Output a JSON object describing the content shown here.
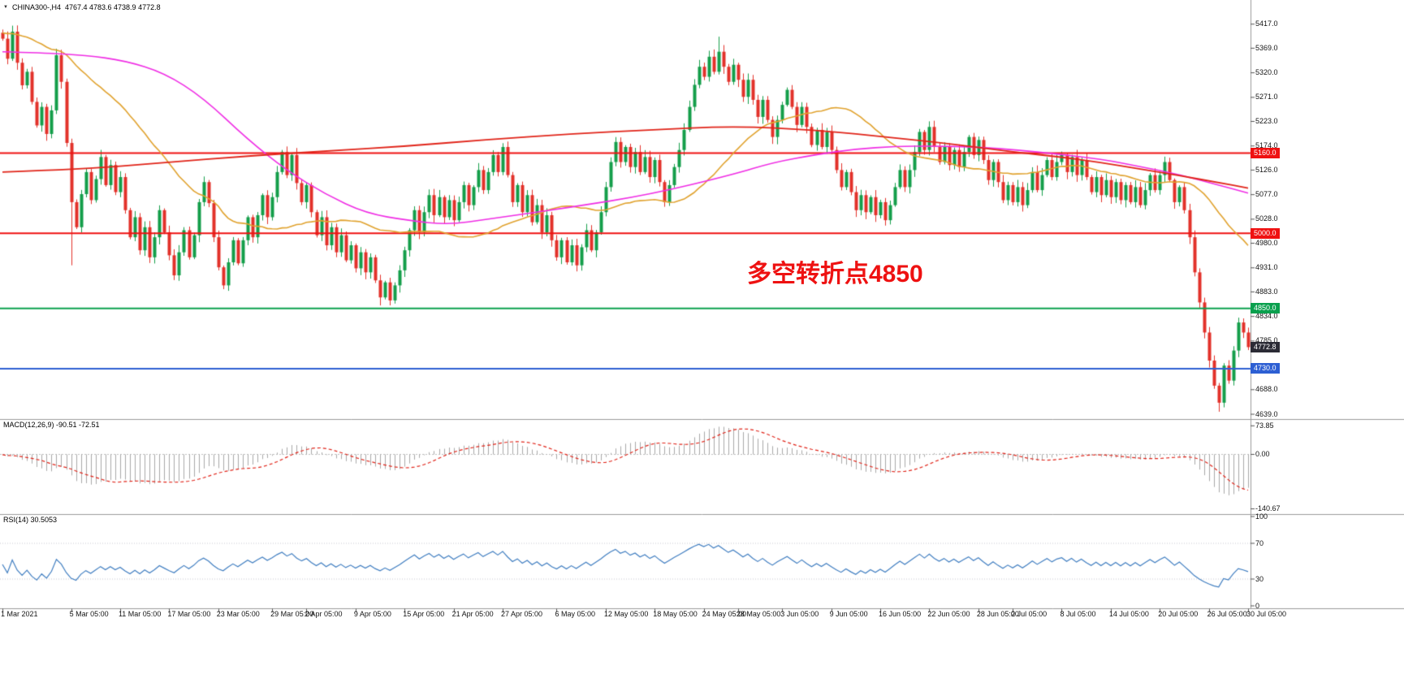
{
  "header": {
    "collapse_icon": "▼",
    "symbol_period": "CHINA300-,H4",
    "ohlc_text": "4767.4 4783.6 4738.9 4772.8"
  },
  "annotation": {
    "text": "多空转折点4850",
    "color": "#ee1111"
  },
  "chart_data": {
    "type": "candlestick",
    "title": "CHINA300-,H4",
    "symbol": "CHINA300-",
    "timeframe": "H4",
    "panels": [
      "price",
      "MACD",
      "RSI"
    ],
    "grid": false,
    "legend_position": "none",
    "price_axis": {
      "min": 4631,
      "max": 5436,
      "ticks": [
        5417,
        5369,
        5320,
        5271,
        5223,
        5174,
        5126,
        5077,
        5028,
        4980,
        4931,
        4883,
        4834,
        4785,
        4688,
        4639
      ]
    },
    "time_labels": [
      {
        "bar": 0,
        "label": "1 Mar 2021"
      },
      {
        "bar": 14,
        "label": "5 Mar 05:00"
      },
      {
        "bar": 24,
        "label": "11 Mar 05:00"
      },
      {
        "bar": 34,
        "label": "17 Mar 05:00"
      },
      {
        "bar": 44,
        "label": "23 Mar 05:00"
      },
      {
        "bar": 55,
        "label": "29 Mar 05:00"
      },
      {
        "bar": 62,
        "label": "2 Apr 05:00"
      },
      {
        "bar": 72,
        "label": "9 Apr 05:00"
      },
      {
        "bar": 82,
        "label": "15 Apr 05:00"
      },
      {
        "bar": 92,
        "label": "21 Apr 05:00"
      },
      {
        "bar": 102,
        "label": "27 Apr 05:00"
      },
      {
        "bar": 113,
        "label": "6 May 05:00"
      },
      {
        "bar": 123,
        "label": "12 May 05:00"
      },
      {
        "bar": 133,
        "label": "18 May 05:00"
      },
      {
        "bar": 143,
        "label": "24 May 05:00"
      },
      {
        "bar": 150,
        "label": "28 May 05:00"
      },
      {
        "bar": 159,
        "label": "3 Jun 05:00"
      },
      {
        "bar": 169,
        "label": "9 Jun 05:00"
      },
      {
        "bar": 179,
        "label": "16 Jun 05:00"
      },
      {
        "bar": 189,
        "label": "22 Jun 05:00"
      },
      {
        "bar": 199,
        "label": "28 Jun 05:00"
      },
      {
        "bar": 206,
        "label": "2 Jul 05:00"
      },
      {
        "bar": 216,
        "label": "8 Jul 05:00"
      },
      {
        "bar": 226,
        "label": "14 Jul 05:00"
      },
      {
        "bar": 236,
        "label": "20 Jul 05:00"
      },
      {
        "bar": 246,
        "label": "26 Jul 05:00"
      },
      {
        "bar": 254,
        "label": "30 Jul 05:00"
      }
    ],
    "pre_close": 5400,
    "closes": [
      5388,
      5348,
      5402,
      5340,
      5295,
      5322,
      5262,
      5215,
      5252,
      5198,
      5245,
      5355,
      5302,
      5180,
      5062,
      5012,
      5078,
      5122,
      5066,
      5108,
      5152,
      5096,
      5136,
      5082,
      5112,
      5046,
      4992,
      5032,
      4966,
      5012,
      4952,
      4992,
      5046,
      5002,
      4956,
      4916,
      4962,
      5006,
      4952,
      4996,
      5062,
      5102,
      5060,
      4992,
      4932,
      4896,
      4942,
      4986,
      4940,
      4986,
      5032,
      4992,
      5036,
      5076,
      5032,
      5072,
      5122,
      5162,
      5116,
      5156,
      5100,
      5062,
      5096,
      5042,
      4996,
      5032,
      4976,
      5012,
      4962,
      4996,
      4946,
      4976,
      4930,
      4962,
      4922,
      4952,
      4906,
      4872,
      4902,
      4866,
      4896,
      4926,
      4966,
      5006,
      5046,
      5002,
      5042,
      5076,
      5036,
      5072,
      5032,
      5066,
      5026,
      5062,
      5096,
      5056,
      5092,
      5126,
      5086,
      5122,
      5156,
      5122,
      5172,
      5116,
      5062,
      5096,
      5042,
      5076,
      5022,
      5056,
      5002,
      5036,
      4986,
      4952,
      4986,
      4942,
      4976,
      4936,
      4972,
      5006,
      4966,
      5002,
      5042,
      5092,
      5142,
      5182,
      5142,
      5172,
      5132,
      5162,
      5122,
      5152,
      5112,
      5146,
      5102,
      5062,
      5096,
      5132,
      5166,
      5206,
      5252,
      5296,
      5332,
      5312,
      5352,
      5322,
      5362,
      5332,
      5302,
      5336,
      5306,
      5272,
      5306,
      5266,
      5232,
      5266,
      5226,
      5192,
      5226,
      5256,
      5286,
      5252,
      5216,
      5252,
      5212,
      5176,
      5206,
      5172,
      5202,
      5166,
      5126,
      5092,
      5122,
      5082,
      5046,
      5076,
      5042,
      5072,
      5036,
      5062,
      5026,
      5056,
      5092,
      5126,
      5092,
      5126,
      5162,
      5202,
      5166,
      5212,
      5172,
      5142,
      5172,
      5136,
      5166,
      5132,
      5162,
      5192,
      5156,
      5186,
      5146,
      5106,
      5142,
      5102,
      5066,
      5096,
      5062,
      5092,
      5056,
      5086,
      5122,
      5086,
      5116,
      5146,
      5112,
      5142,
      5156,
      5122,
      5152,
      5116,
      5146,
      5112,
      5082,
      5112,
      5076,
      5106,
      5072,
      5102,
      5066,
      5096,
      5062,
      5092,
      5056,
      5086,
      5116,
      5086,
      5116,
      5142,
      5106,
      5062,
      5092,
      5046,
      4992,
      4922,
      4862,
      4802,
      4746,
      4696,
      4662,
      4736,
      4706,
      4766,
      4822,
      4802,
      4772.8
    ],
    "wick_high_overrides": {
      "2": 5414,
      "11": 5368,
      "146": 5392
    },
    "wick_low_overrides": {
      "14": 4936,
      "77": 4856,
      "248": 4644
    },
    "candle_colors": {
      "up": "#149e4a",
      "down": "#e2312a"
    },
    "current_price": {
      "value": 4772.8,
      "label": "4772.8",
      "tag_color": "#2b2b35"
    },
    "levels": [
      {
        "price": 5160.0,
        "label": "5160.0",
        "color": "#ef1111",
        "width": 2
      },
      {
        "price": 5000.0,
        "label": "5000.0",
        "color": "#ef1111",
        "width": 2
      },
      {
        "price": 4850.0,
        "label": "4850.0",
        "color": "#0aa04e",
        "width": 2
      },
      {
        "price": 4730.0,
        "label": "4730.0",
        "color": "#2d5fd3",
        "width": 2
      }
    ],
    "moving_averages": {
      "fast_sma_period": 34,
      "fast_color": "#e0a22e",
      "magenta_color": "#ef2de4",
      "magenta_points": [
        [
          0,
          5362
        ],
        [
          8,
          5360
        ],
        [
          17,
          5355
        ],
        [
          25,
          5344
        ],
        [
          33,
          5320
        ],
        [
          41,
          5270
        ],
        [
          50,
          5187
        ],
        [
          58,
          5125
        ],
        [
          66,
          5077
        ],
        [
          74,
          5040
        ],
        [
          83,
          5025
        ],
        [
          91,
          5017
        ],
        [
          99,
          5028
        ],
        [
          116,
          5052
        ],
        [
          132,
          5077
        ],
        [
          149,
          5117
        ],
        [
          157,
          5141
        ],
        [
          166,
          5157
        ],
        [
          174,
          5168
        ],
        [
          182,
          5173
        ],
        [
          190,
          5174
        ],
        [
          199,
          5172
        ],
        [
          207,
          5166
        ],
        [
          215,
          5158
        ],
        [
          224,
          5148
        ],
        [
          232,
          5133
        ],
        [
          240,
          5117
        ],
        [
          248,
          5096
        ],
        [
          254,
          5080
        ]
      ],
      "red_color": "#e02419",
      "red_points": [
        [
          0,
          5122
        ],
        [
          17,
          5128
        ],
        [
          33,
          5141
        ],
        [
          50,
          5154
        ],
        [
          66,
          5164
        ],
        [
          83,
          5174
        ],
        [
          99,
          5187
        ],
        [
          116,
          5198
        ],
        [
          132,
          5206
        ],
        [
          149,
          5214
        ],
        [
          166,
          5206
        ],
        [
          182,
          5190
        ],
        [
          190,
          5182
        ],
        [
          199,
          5171
        ],
        [
          207,
          5161
        ],
        [
          215,
          5153
        ],
        [
          224,
          5141
        ],
        [
          232,
          5128
        ],
        [
          240,
          5115
        ],
        [
          248,
          5101
        ],
        [
          254,
          5090
        ]
      ]
    },
    "macd": {
      "label": "MACD(12,26,9) -90.51 -72.51",
      "fast": 12,
      "slow": 26,
      "signal": 9,
      "main_value": -90.51,
      "signal_value": -72.51,
      "range": [
        -150,
        85
      ],
      "ticks": [
        {
          "value": 73.85,
          "label": "73.85"
        },
        {
          "value": 0,
          "label": "0.00"
        },
        {
          "value": -140.67,
          "label": "-140.67"
        }
      ],
      "histogram_color": "#a8a8a8",
      "signal_color": "#e02419"
    },
    "rsi": {
      "label": "RSI(14) 30.5053",
      "period": 14,
      "current": 30.5053,
      "range": [
        0,
        100
      ],
      "levels": [
        70,
        30
      ],
      "ticks": [
        {
          "value": 100,
          "label": "100"
        },
        {
          "value": 70,
          "label": "70"
        },
        {
          "value": 30,
          "label": "30"
        },
        {
          "value": 0,
          "label": "0"
        }
      ],
      "line_color": "#3f7dc0"
    }
  }
}
